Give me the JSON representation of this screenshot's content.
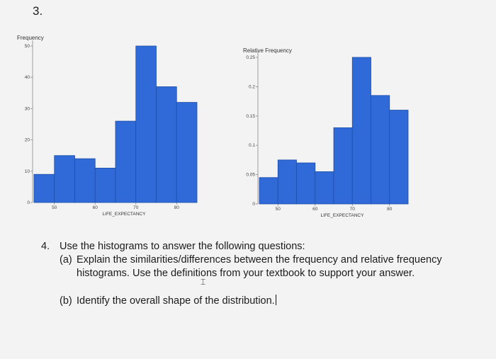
{
  "problem_number": "3.",
  "chart_data": [
    {
      "type": "bar",
      "ylabel": "Frequency",
      "xlabel": "LIFE_EXPECTANCY",
      "bin_edges": [
        45,
        50,
        55,
        60,
        65,
        70,
        75,
        80,
        85
      ],
      "values": [
        9,
        15,
        14,
        11,
        26,
        50,
        37,
        32
      ],
      "ylim": [
        0,
        50
      ],
      "yticks": [
        0,
        10,
        20,
        30,
        40,
        50
      ],
      "xticks": [
        50,
        60,
        70,
        80
      ]
    },
    {
      "type": "bar",
      "ylabel": "Relative Frequency",
      "xlabel": "LIFE_EXPECTANCY",
      "bin_edges": [
        45,
        50,
        55,
        60,
        65,
        70,
        75,
        80,
        85
      ],
      "values": [
        0.045,
        0.075,
        0.07,
        0.055,
        0.13,
        0.25,
        0.185,
        0.16
      ],
      "ylim": [
        0,
        0.25
      ],
      "yticks": [
        0,
        0.05,
        0.1,
        0.15,
        0.2,
        0.25
      ],
      "ytick_labels": [
        "0",
        "0.05",
        "0.1",
        "0.15",
        "0.2",
        "0.25"
      ],
      "xticks": [
        50,
        60,
        70,
        80
      ]
    }
  ],
  "question": {
    "number": "4.",
    "intro": "Use the histograms to answer the following questions:",
    "part_a_label": "(a)",
    "part_a_line1": "Explain the similarities/differences between the frequency and relative frequency",
    "part_a_line2": "histograms. Use the definitions from your textbook to support your answer.",
    "part_b_label": "(b)",
    "part_b_text": "Identify the overall shape of the distribution."
  }
}
